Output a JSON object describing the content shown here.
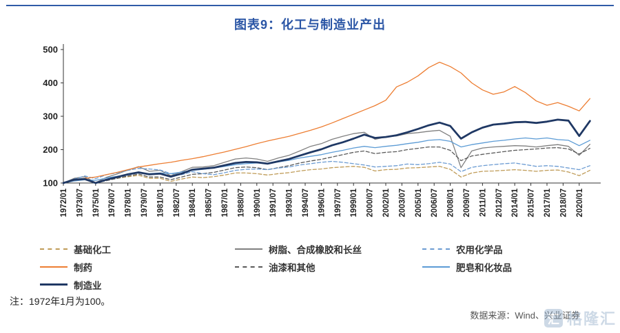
{
  "page": {
    "title": "图表9：化工与制造业产出",
    "title_color": "#2a55a5",
    "rule_color": "#2f5ba7",
    "note": "注：1972年1月为100。",
    "source": "数据来源：Wind、兴业证券",
    "watermark": {
      "logo_char": "汇",
      "text": "格隆汇",
      "color": "#8aa6c4"
    }
  },
  "chart_data": {
    "type": "line",
    "title": "图表9：化工与制造业产出",
    "grid": false,
    "legend_position": "bottom",
    "ylim": [
      100,
      500
    ],
    "yticks": [
      100,
      200,
      300,
      400,
      500
    ],
    "x": [
      1972,
      1973,
      1974,
      1975,
      1976,
      1977,
      1978,
      1979,
      1980,
      1981,
      1982,
      1983,
      1984,
      1985,
      1986,
      1987,
      1988,
      1989,
      1990,
      1991,
      1992,
      1993,
      1994,
      1995,
      1996,
      1997,
      1998,
      1999,
      2000,
      2001,
      2002,
      2003,
      2004,
      2005,
      2006,
      2007,
      2008,
      2009,
      2010,
      2011,
      2012,
      2013,
      2014,
      2015,
      2016,
      2017,
      2018,
      2019,
      2020,
      2021
    ],
    "xtick_labels": [
      "1972/01",
      "1973/07",
      "1975/01",
      "1976/07",
      "1978/01",
      "1979/07",
      "1981/01",
      "1982/07",
      "1984/01",
      "1985/07",
      "1987/01",
      "1988/07",
      "1990/01",
      "1991/07",
      "1993/01",
      "1994/07",
      "1996/01",
      "1997/07",
      "1999/01",
      "2000/07",
      "2002/01",
      "2003/07",
      "2005/01",
      "2006/07",
      "2008/01",
      "2009/07",
      "2011/01",
      "2012/07",
      "2014/01",
      "2015/07",
      "2017/01",
      "2018/07",
      "2020/01"
    ],
    "draw_order": [
      0,
      3,
      4,
      5,
      6,
      1,
      2
    ],
    "legend_columns": [
      [
        0,
        1,
        2
      ],
      [
        3,
        4
      ],
      [
        5,
        6
      ]
    ],
    "series": [
      {
        "key": "basic-chemicals",
        "name": "基础化工",
        "color": "#bf9b57",
        "dash": "5 3",
        "width": 1.3,
        "values": [
          100,
          108,
          112,
          100,
          108,
          114,
          119,
          123,
          114,
          114,
          105,
          112,
          118,
          116,
          119,
          124,
          130,
          130,
          128,
          124,
          128,
          131,
          136,
          140,
          142,
          146,
          148,
          150,
          147,
          136,
          140,
          141,
          145,
          146,
          148,
          150,
          141,
          118,
          130,
          135,
          136,
          138,
          140,
          138,
          135,
          138,
          139,
          133,
          122,
          138
        ]
      },
      {
        "key": "pharmaceuticals",
        "name": "制药",
        "color": "#ED7D31",
        "dash": "",
        "width": 1.3,
        "values": [
          100,
          108,
          114,
          118,
          125,
          132,
          140,
          148,
          153,
          158,
          162,
          168,
          173,
          179,
          186,
          193,
          201,
          209,
          218,
          226,
          233,
          240,
          249,
          258,
          268,
          280,
          293,
          306,
          319,
          332,
          348,
          388,
          402,
          421,
          446,
          462,
          449,
          430,
          400,
          379,
          366,
          373,
          389,
          371,
          346,
          333,
          341,
          330,
          316,
          353
        ]
      },
      {
        "key": "manufacturing",
        "name": "制造业",
        "color": "#1F3864",
        "dash": "",
        "width": 2.8,
        "values": [
          100,
          110,
          112,
          100,
          110,
          118,
          126,
          132,
          126,
          128,
          119,
          128,
          140,
          143,
          146,
          153,
          160,
          163,
          162,
          158,
          165,
          172,
          182,
          192,
          201,
          213,
          222,
          233,
          245,
          235,
          238,
          243,
          252,
          262,
          273,
          281,
          271,
          233,
          252,
          266,
          275,
          278,
          282,
          283,
          280,
          284,
          290,
          287,
          241,
          286
        ]
      },
      {
        "key": "resins-rubber-filament",
        "name": "树脂、合成橡胶和长丝",
        "color": "#7F7F7F",
        "dash": "",
        "width": 1.3,
        "values": [
          100,
          114,
          119,
          101,
          117,
          127,
          139,
          149,
          135,
          138,
          122,
          134,
          147,
          148,
          152,
          162,
          172,
          175,
          172,
          165,
          175,
          183,
          196,
          210,
          218,
          231,
          240,
          248,
          252,
          231,
          238,
          241,
          248,
          251,
          255,
          258,
          240,
          146,
          196,
          205,
          208,
          210,
          212,
          211,
          208,
          212,
          215,
          210,
          183,
          216
        ]
      },
      {
        "key": "paints-others",
        "name": "油漆和其他",
        "color": "#595959",
        "dash": "5 3",
        "width": 1.3,
        "values": [
          100,
          109,
          110,
          100,
          107,
          114,
          121,
          127,
          118,
          118,
          110,
          118,
          126,
          128,
          132,
          139,
          146,
          148,
          146,
          140,
          146,
          152,
          160,
          166,
          171,
          178,
          185,
          192,
          196,
          188,
          192,
          194,
          200,
          204,
          208,
          208,
          198,
          167,
          181,
          186,
          190,
          194,
          198,
          200,
          202,
          205,
          206,
          202,
          187,
          204
        ]
      },
      {
        "key": "agricultural-chemicals",
        "name": "农用化学品",
        "color": "#6b9bd2",
        "dash": "5 3",
        "width": 1.3,
        "values": [
          100,
          112,
          121,
          113,
          125,
          131,
          138,
          144,
          142,
          139,
          128,
          125,
          134,
          128,
          125,
          131,
          138,
          141,
          142,
          140,
          145,
          148,
          154,
          158,
          162,
          165,
          162,
          158,
          154,
          148,
          150,
          152,
          157,
          155,
          158,
          162,
          157,
          134,
          147,
          152,
          155,
          158,
          160,
          155,
          150,
          152,
          150,
          145,
          140,
          152
        ]
      },
      {
        "key": "soaps-cosmetics",
        "name": "肥皂和化妆品",
        "color": "#5B9BD5",
        "dash": "",
        "width": 1.3,
        "values": [
          100,
          106,
          110,
          108,
          115,
          120,
          126,
          130,
          128,
          130,
          128,
          133,
          138,
          141,
          145,
          150,
          155,
          158,
          160,
          158,
          163,
          168,
          175,
          180,
          185,
          192,
          198,
          205,
          210,
          206,
          210,
          213,
          218,
          222,
          228,
          230,
          225,
          208,
          215,
          220,
          225,
          228,
          232,
          235,
          232,
          235,
          230,
          228,
          212,
          228
        ]
      }
    ]
  }
}
